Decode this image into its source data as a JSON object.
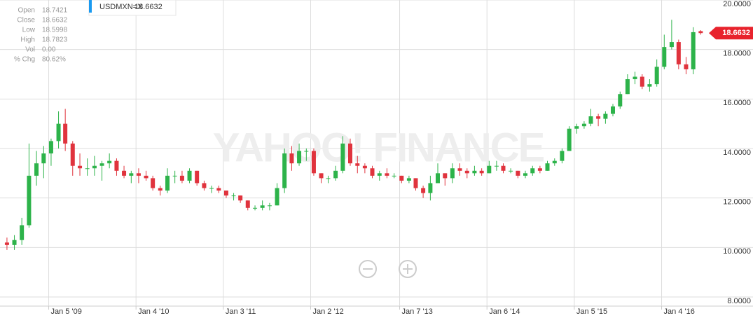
{
  "chart_data": {
    "type": "candlestick",
    "series_name": "USDMXN=X",
    "watermark": "YAHOO! FINANCE",
    "up_color": "#2db34a",
    "down_color": "#e0333d",
    "grid": true,
    "info": {
      "labels": [
        "Open",
        "Close",
        "Low",
        "High",
        "Vol",
        "% Chg"
      ],
      "vol": "0.00",
      "pct_change": "80.62%"
    },
    "x": [
      "2008-07-15",
      "2008-08-15",
      "2008-09-15",
      "2008-10-15",
      "2008-11-15",
      "2008-12-15",
      "2009-01-15",
      "2009-02-15",
      "2009-03-15",
      "2009-04-15",
      "2009-05-15",
      "2009-06-15",
      "2009-07-15",
      "2009-08-15",
      "2009-09-15",
      "2009-10-15",
      "2009-11-15",
      "2009-12-15",
      "2010-01-15",
      "2010-02-15",
      "2010-03-15",
      "2010-04-15",
      "2010-05-15",
      "2010-06-15",
      "2010-07-15",
      "2010-08-15",
      "2010-09-15",
      "2010-10-15",
      "2010-11-15",
      "2010-12-15",
      "2011-01-15",
      "2011-02-15",
      "2011-03-15",
      "2011-04-15",
      "2011-05-15",
      "2011-06-15",
      "2011-07-15",
      "2011-08-15",
      "2011-09-15",
      "2011-10-15",
      "2011-11-15",
      "2011-12-15",
      "2012-01-15",
      "2012-02-15",
      "2012-03-15",
      "2012-04-15",
      "2012-05-15",
      "2012-06-15",
      "2012-07-15",
      "2012-08-15",
      "2012-09-15",
      "2012-10-15",
      "2012-11-15",
      "2012-12-15",
      "2013-01-15",
      "2013-02-15",
      "2013-03-15",
      "2013-04-15",
      "2013-05-15",
      "2013-06-15",
      "2013-07-15",
      "2013-08-15",
      "2013-09-15",
      "2013-10-15",
      "2013-11-15",
      "2013-12-15",
      "2014-01-15",
      "2014-02-15",
      "2014-03-15",
      "2014-04-15",
      "2014-05-15",
      "2014-06-15",
      "2014-07-15",
      "2014-08-15",
      "2014-09-15",
      "2014-10-15",
      "2014-11-15",
      "2014-12-15",
      "2015-01-15",
      "2015-02-15",
      "2015-03-15",
      "2015-04-15",
      "2015-05-15",
      "2015-06-15",
      "2015-07-15",
      "2015-08-15",
      "2015-09-15",
      "2015-10-15",
      "2015-11-15",
      "2015-12-15",
      "2016-01-15",
      "2016-02-15",
      "2016-03-15",
      "2016-04-15",
      "2016-05-15",
      "2016-06-15"
    ],
    "open": [
      10.2,
      10.1,
      10.3,
      10.9,
      12.9,
      13.4,
      13.8,
      14.3,
      15.0,
      14.2,
      13.3,
      13.2,
      13.2,
      13.3,
      13.4,
      13.5,
      13.1,
      12.9,
      13.0,
      12.9,
      12.8,
      12.4,
      12.3,
      12.9,
      12.9,
      12.7,
      13.1,
      12.6,
      12.4,
      12.4,
      12.3,
      12.1,
      12.1,
      11.9,
      11.6,
      11.6,
      11.7,
      11.7,
      12.4,
      13.8,
      13.4,
      13.9,
      13.9,
      13.0,
      12.8,
      12.8,
      13.1,
      14.2,
      13.4,
      13.3,
      13.2,
      12.9,
      13.0,
      12.9,
      12.9,
      12.7,
      12.8,
      12.4,
      12.2,
      12.6,
      13.0,
      12.8,
      13.2,
      13.1,
      13.0,
      13.1,
      13.0,
      13.3,
      13.3,
      13.1,
      13.1,
      12.9,
      13.0,
      13.2,
      13.1,
      13.4,
      13.5,
      13.9,
      14.8,
      14.9,
      15.0,
      15.3,
      15.2,
      15.4,
      15.7,
      16.2,
      16.8,
      16.9,
      16.5,
      16.6,
      17.3,
      18.1,
      18.3,
      17.4,
      17.2,
      18.7421
    ],
    "high": [
      10.4,
      10.5,
      11.2,
      14.2,
      13.9,
      14.1,
      14.4,
      15.5,
      15.6,
      14.3,
      13.8,
      13.6,
      13.7,
      13.5,
      13.8,
      13.6,
      13.3,
      13.1,
      13.2,
      13.1,
      12.9,
      12.5,
      13.2,
      13.1,
      13.1,
      13.2,
      13.1,
      12.7,
      12.5,
      12.5,
      12.3,
      12.2,
      12.1,
      11.9,
      11.7,
      11.9,
      11.8,
      12.6,
      14.0,
      14.1,
      14.2,
      14.0,
      14.0,
      13.0,
      12.9,
      13.3,
      14.5,
      14.4,
      13.7,
      13.4,
      13.3,
      13.1,
      13.2,
      13.0,
      12.9,
      12.9,
      12.8,
      12.5,
      12.9,
      13.4,
      13.0,
      13.4,
      13.4,
      13.2,
      13.3,
      13.2,
      13.5,
      13.5,
      13.4,
      13.2,
      13.1,
      13.1,
      13.3,
      13.3,
      13.5,
      13.6,
      14.0,
      14.9,
      15.0,
      15.1,
      15.6,
      15.4,
      15.5,
      15.8,
      16.3,
      17.0,
      17.1,
      17.0,
      16.8,
      17.6,
      18.6,
      19.2,
      18.4,
      17.7,
      18.9,
      18.7823
    ],
    "low": [
      9.9,
      9.9,
      10.1,
      10.8,
      12.5,
      12.8,
      13.3,
      14.0,
      13.9,
      12.9,
      12.9,
      12.9,
      12.9,
      12.7,
      13.2,
      12.9,
      12.8,
      12.6,
      12.6,
      12.7,
      12.3,
      12.1,
      12.2,
      12.6,
      12.6,
      12.6,
      12.5,
      12.3,
      12.2,
      12.2,
      12.0,
      11.9,
      11.8,
      11.5,
      11.5,
      11.5,
      11.5,
      11.7,
      12.2,
      13.1,
      13.3,
      13.5,
      12.9,
      12.6,
      12.6,
      12.7,
      13.0,
      13.3,
      13.0,
      13.0,
      12.8,
      12.7,
      12.8,
      12.8,
      12.6,
      12.6,
      12.3,
      12.0,
      11.9,
      12.6,
      12.5,
      12.6,
      12.9,
      12.8,
      12.9,
      12.9,
      13.0,
      13.1,
      13.0,
      13.0,
      12.8,
      12.8,
      12.9,
      13.0,
      13.1,
      13.3,
      13.4,
      13.9,
      14.6,
      14.8,
      14.9,
      14.9,
      15.0,
      15.3,
      15.6,
      16.2,
      16.6,
      16.4,
      16.3,
      16.5,
      17.2,
      18.0,
      17.2,
      17.0,
      17.0,
      18.5998
    ],
    "close": [
      10.1,
      10.3,
      10.9,
      12.9,
      13.4,
      13.8,
      14.3,
      15.0,
      14.2,
      13.3,
      13.2,
      13.2,
      13.3,
      13.4,
      13.5,
      13.1,
      12.9,
      13.0,
      12.9,
      12.8,
      12.4,
      12.3,
      12.9,
      12.9,
      12.7,
      13.1,
      12.6,
      12.4,
      12.4,
      12.3,
      12.1,
      12.1,
      11.9,
      11.6,
      11.6,
      11.7,
      11.7,
      12.4,
      13.8,
      13.4,
      13.9,
      13.9,
      13.0,
      12.8,
      12.8,
      13.1,
      14.2,
      13.4,
      13.3,
      13.2,
      12.9,
      13.0,
      12.9,
      12.9,
      12.7,
      12.8,
      12.4,
      12.2,
      12.6,
      13.0,
      12.8,
      13.2,
      13.1,
      13.0,
      13.1,
      13.0,
      13.3,
      13.3,
      13.1,
      13.1,
      12.9,
      13.0,
      13.2,
      13.1,
      13.4,
      13.5,
      13.9,
      14.8,
      14.9,
      15.0,
      15.3,
      15.2,
      15.4,
      15.7,
      16.2,
      16.8,
      16.9,
      16.5,
      16.6,
      17.3,
      18.1,
      18.3,
      17.4,
      17.2,
      18.7,
      18.6632
    ],
    "xlim": [
      "2008-06-16",
      "2017-01-19"
    ],
    "xticks": [
      {
        "value": "2009-01-05",
        "label": "Jan 5 '09"
      },
      {
        "value": "2010-01-04",
        "label": "Jan 4 '10"
      },
      {
        "value": "2011-01-03",
        "label": "Jan 3 '11"
      },
      {
        "value": "2012-01-02",
        "label": "Jan 2 '12"
      },
      {
        "value": "2013-01-07",
        "label": "Jan 7 '13"
      },
      {
        "value": "2014-01-06",
        "label": "Jan 6 '14"
      },
      {
        "value": "2015-01-05",
        "label": "Jan 5 '15"
      },
      {
        "value": "2016-01-04",
        "label": "Jan 4 '16"
      }
    ],
    "ylim": [
      8,
      20
    ],
    "yticks": [
      {
        "value": 8,
        "label": "8.0000"
      },
      {
        "value": 10,
        "label": "10.0000"
      },
      {
        "value": 12,
        "label": "12.0000"
      },
      {
        "value": 14,
        "label": "14.0000"
      },
      {
        "value": 16,
        "label": "16.0000"
      },
      {
        "value": 18,
        "label": "18.0000"
      },
      {
        "value": 20,
        "label": "20.0000"
      }
    ]
  }
}
